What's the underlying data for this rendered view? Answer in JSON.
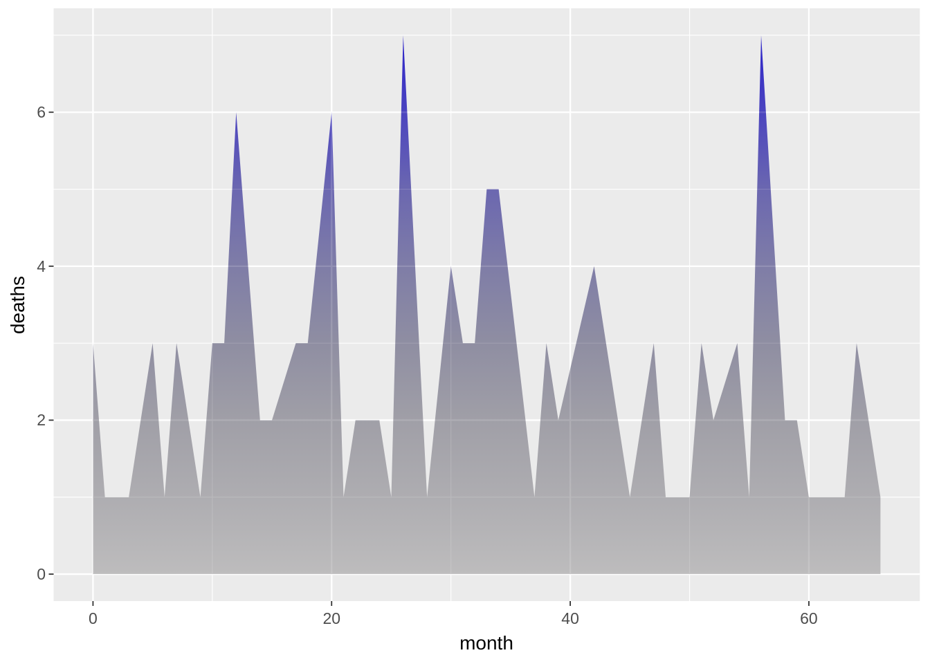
{
  "figure": {
    "background_color": "#ffffff"
  },
  "chart_data": {
    "type": "area",
    "title": "",
    "xlabel": "month",
    "ylabel": "deaths",
    "points": [
      [
        0,
        3
      ],
      [
        1,
        1
      ],
      [
        3,
        1
      ],
      [
        5,
        3
      ],
      [
        6,
        1
      ],
      [
        7,
        3
      ],
      [
        9,
        1
      ],
      [
        10,
        3
      ],
      [
        11,
        3
      ],
      [
        12,
        6
      ],
      [
        14,
        2
      ],
      [
        15,
        2
      ],
      [
        17,
        3
      ],
      [
        18,
        3
      ],
      [
        20,
        6
      ],
      [
        21,
        1
      ],
      [
        22,
        2
      ],
      [
        24,
        2
      ],
      [
        25,
        1
      ],
      [
        26,
        7
      ],
      [
        28,
        1
      ],
      [
        30,
        4
      ],
      [
        31,
        3
      ],
      [
        32,
        3
      ],
      [
        33,
        5
      ],
      [
        34,
        5
      ],
      [
        37,
        1
      ],
      [
        38,
        3
      ],
      [
        39,
        2
      ],
      [
        42,
        4
      ],
      [
        45,
        1
      ],
      [
        47,
        3
      ],
      [
        48,
        1
      ],
      [
        50,
        1
      ],
      [
        51,
        3
      ],
      [
        52,
        2
      ],
      [
        54,
        3
      ],
      [
        55,
        1
      ],
      [
        56,
        7
      ],
      [
        58,
        2
      ],
      [
        59,
        2
      ],
      [
        60,
        1
      ],
      [
        63,
        1
      ],
      [
        64,
        3
      ],
      [
        66,
        1
      ]
    ],
    "baseline": 0,
    "xlim": [
      -3.3,
      69.3
    ],
    "ylim": [
      -0.35,
      7.35
    ],
    "x_ticks": [
      0,
      20,
      40,
      60
    ],
    "y_ticks": [
      0,
      2,
      4,
      6
    ],
    "x_minor_gridlines": [
      10,
      30,
      50
    ],
    "y_minor_gridlines": [
      1,
      3,
      5,
      7
    ],
    "grid": true,
    "legend": "none",
    "panel_background": "#ebebeb",
    "grid_color": "#ffffff",
    "tick_mark_color": "#333333",
    "tick_label_color": "#4d4d4d",
    "axis_title_color": "#000000",
    "fill_gradient": [
      {
        "value": 0,
        "color": "#bdbcbd"
      },
      {
        "value": 1,
        "color": "#aeadb1"
      },
      {
        "value": 2,
        "color": "#a09fa7"
      },
      {
        "value": 3,
        "color": "#8f8ea2"
      },
      {
        "value": 4,
        "color": "#7f7da7"
      },
      {
        "value": 5,
        "color": "#6b67b0"
      },
      {
        "value": 6,
        "color": "#4b44bf"
      },
      {
        "value": 7,
        "color": "#2c23ca"
      }
    ]
  }
}
